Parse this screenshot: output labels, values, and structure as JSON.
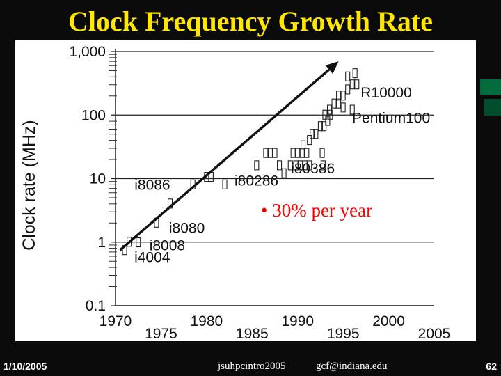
{
  "slide": {
    "title": "Clock Frequency Growth Rate",
    "footer_date": "1/10/2005",
    "footer_source": "jsuhpcintro2005",
    "footer_email": "gcf@indiana.edu",
    "page_number": "62"
  },
  "colors": {
    "background": "#0a0a0a",
    "title": "#ffe700",
    "plot_background": "#ffffff",
    "accent": "#006b3c"
  },
  "chart_data": {
    "type": "scatter",
    "title": "",
    "ylabel": "Clock rate (MHz)",
    "xlabel": "",
    "y_scale": "log",
    "xlim": [
      1970,
      2005
    ],
    "ylim": [
      0.1,
      1000
    ],
    "x_tick_labels": [
      "1970",
      "1975",
      "1980",
      "1985",
      "1990",
      "1995",
      "2000",
      "2005"
    ],
    "y_tick_labels": [
      "1,000",
      "100",
      "10",
      "1",
      "0.1"
    ],
    "y_tick_values": [
      1000,
      100,
      10,
      1,
      0.1
    ],
    "grid": "horizontal lines at each decade",
    "annotation": "• 30% per year",
    "trend_line": {
      "from": [
        1970.5,
        0.75
      ],
      "to": [
        1994.5,
        700
      ]
    },
    "processors": [
      {
        "name": "i4004",
        "x": 1971,
        "y": 0.74
      },
      {
        "name": "i8008",
        "x": 1972.5,
        "y": 0.98
      },
      {
        "name": "i8080",
        "x": 1974.5,
        "y": 3.2
      },
      {
        "name": "i8086",
        "x": 1978.5,
        "y": 8
      },
      {
        "name": "i80286",
        "x": 1982,
        "y": 9.8
      },
      {
        "name": "i80386",
        "x": 1988.5,
        "y": 16
      },
      {
        "name": "Pentium100",
        "x": 1994,
        "y": 100
      },
      {
        "name": "R10000",
        "x": 1996,
        "y": 195
      }
    ],
    "points": [
      {
        "x": 1971,
        "y": 0.74
      },
      {
        "x": 1971.5,
        "y": 1.0
      },
      {
        "x": 1972.5,
        "y": 0.98
      },
      {
        "x": 1974.5,
        "y": 2.0
      },
      {
        "x": 1976,
        "y": 4.0
      },
      {
        "x": 1978.5,
        "y": 8.0
      },
      {
        "x": 1980,
        "y": 10.5
      },
      {
        "x": 1980.5,
        "y": 10.5
      },
      {
        "x": 1982,
        "y": 8.0
      },
      {
        "x": 1985.5,
        "y": 16
      },
      {
        "x": 1986.5,
        "y": 25
      },
      {
        "x": 1987,
        "y": 25
      },
      {
        "x": 1987.5,
        "y": 25
      },
      {
        "x": 1988,
        "y": 16
      },
      {
        "x": 1988.5,
        "y": 12
      },
      {
        "x": 1989.5,
        "y": 25
      },
      {
        "x": 1990,
        "y": 25
      },
      {
        "x": 1990.5,
        "y": 25
      },
      {
        "x": 1991,
        "y": 25
      },
      {
        "x": 1989.2,
        "y": 16
      },
      {
        "x": 1989.8,
        "y": 16
      },
      {
        "x": 1990.3,
        "y": 16
      },
      {
        "x": 1990.8,
        "y": 16
      },
      {
        "x": 1991.3,
        "y": 16
      },
      {
        "x": 1990.6,
        "y": 33
      },
      {
        "x": 1991.3,
        "y": 40
      },
      {
        "x": 1991.6,
        "y": 50
      },
      {
        "x": 1992,
        "y": 50
      },
      {
        "x": 1992.5,
        "y": 66
      },
      {
        "x": 1992.9,
        "y": 66
      },
      {
        "x": 1993.3,
        "y": 80
      },
      {
        "x": 1993,
        "y": 100
      },
      {
        "x": 1993.6,
        "y": 100
      },
      {
        "x": 1992.7,
        "y": 25
      },
      {
        "x": 1992.8,
        "y": 16
      },
      {
        "x": 1993.5,
        "y": 120
      },
      {
        "x": 1994,
        "y": 150
      },
      {
        "x": 1994.5,
        "y": 150
      },
      {
        "x": 1995,
        "y": 130
      },
      {
        "x": 1994.5,
        "y": 200
      },
      {
        "x": 1995,
        "y": 200
      },
      {
        "x": 1995.5,
        "y": 250
      },
      {
        "x": 1996,
        "y": 300
      },
      {
        "x": 1996.5,
        "y": 300
      },
      {
        "x": 1996,
        "y": 120
      },
      {
        "x": 1995.5,
        "y": 400
      },
      {
        "x": 1996.3,
        "y": 450
      }
    ]
  }
}
